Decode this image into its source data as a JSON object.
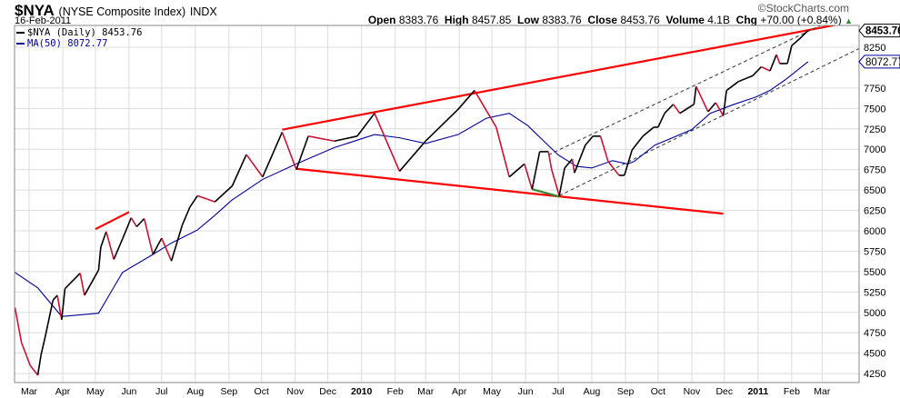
{
  "header": {
    "symbol": "$NYA",
    "name": "(NYSE Composite Index)",
    "exchange": "INDX",
    "date": "16-Feb-2011",
    "logo": "©StockCharts.com"
  },
  "quote": {
    "open_label": "Open",
    "open": "8383.76",
    "high_label": "High",
    "high": "8457.85",
    "low_label": "Low",
    "low": "8383.76",
    "close_label": "Close",
    "close": "8453.76",
    "volume_label": "Volume",
    "volume": "4.1B",
    "chg_label": "Chg",
    "chg": "+70.00 (+0.84%)",
    "chg_icon": "up-triangle-icon",
    "chg_color": "#2e8b2e"
  },
  "legend": [
    {
      "label": "$NYA (Daily) 8453.76",
      "color": "#000000"
    },
    {
      "label": "MA(50) 8072.77",
      "color": "#000099"
    }
  ],
  "chart_data": {
    "type": "line",
    "ylim": [
      4140,
      8517
    ],
    "y_ticks": [
      4250,
      4500,
      4750,
      5000,
      5250,
      5500,
      5750,
      6000,
      6250,
      6500,
      6750,
      7000,
      7250,
      7500,
      7750,
      8250
    ],
    "grid": true,
    "x_ticks": [
      {
        "date": "2009-03-01",
        "label": "Mar"
      },
      {
        "date": "2009-04-01",
        "label": "Apr"
      },
      {
        "date": "2009-05-01",
        "label": "May"
      },
      {
        "date": "2009-06-01",
        "label": "Jun"
      },
      {
        "date": "2009-07-01",
        "label": "Jul"
      },
      {
        "date": "2009-08-01",
        "label": "Aug"
      },
      {
        "date": "2009-09-01",
        "label": "Sep"
      },
      {
        "date": "2009-10-01",
        "label": "Oct"
      },
      {
        "date": "2009-11-01",
        "label": "Nov"
      },
      {
        "date": "2009-12-01",
        "label": "Dec"
      },
      {
        "date": "2010-01-01",
        "label": "2010",
        "bold": true
      },
      {
        "date": "2010-02-01",
        "label": "Feb"
      },
      {
        "date": "2010-03-01",
        "label": "Mar"
      },
      {
        "date": "2010-04-01",
        "label": "Apr"
      },
      {
        "date": "2010-05-01",
        "label": "May"
      },
      {
        "date": "2010-06-01",
        "label": "Jun"
      },
      {
        "date": "2010-07-01",
        "label": "Jul"
      },
      {
        "date": "2010-08-01",
        "label": "Aug"
      },
      {
        "date": "2010-09-01",
        "label": "Sep"
      },
      {
        "date": "2010-10-01",
        "label": "Oct"
      },
      {
        "date": "2010-11-01",
        "label": "Nov"
      },
      {
        "date": "2010-12-01",
        "label": "Dec"
      },
      {
        "date": "2011-01-01",
        "label": "2011",
        "bold": true
      },
      {
        "date": "2011-02-01",
        "label": "Feb"
      },
      {
        "date": "2011-03-01",
        "label": "Mar"
      }
    ],
    "last_price_label": "8453.76",
    "last_ma_label": "8072.77",
    "series": [
      {
        "name": "$NYA (Daily)",
        "color": "#000000",
        "down_color": "#cc1133",
        "points": [
          [
            "2009-02-16",
            5060
          ],
          [
            "2009-02-22",
            4630
          ],
          [
            "2009-03-02",
            4350
          ],
          [
            "2009-03-09",
            4230
          ],
          [
            "2009-03-12",
            4480
          ],
          [
            "2009-03-16",
            4710
          ],
          [
            "2009-03-23",
            5150
          ],
          [
            "2009-03-27",
            5210
          ],
          [
            "2009-03-31",
            4910
          ],
          [
            "2009-04-03",
            5290
          ],
          [
            "2009-04-17",
            5480
          ],
          [
            "2009-04-21",
            5210
          ],
          [
            "2009-05-04",
            5520
          ],
          [
            "2009-05-06",
            5800
          ],
          [
            "2009-05-11",
            5990
          ],
          [
            "2009-05-18",
            5650
          ],
          [
            "2009-05-26",
            5900
          ],
          [
            "2009-06-03",
            6160
          ],
          [
            "2009-06-08",
            6050
          ],
          [
            "2009-06-15",
            6150
          ],
          [
            "2009-06-23",
            5710
          ],
          [
            "2009-07-01",
            5910
          ],
          [
            "2009-07-10",
            5630
          ],
          [
            "2009-07-20",
            6070
          ],
          [
            "2009-07-27",
            6290
          ],
          [
            "2009-08-03",
            6430
          ],
          [
            "2009-08-19",
            6355
          ],
          [
            "2009-09-04",
            6550
          ],
          [
            "2009-09-17",
            6935
          ],
          [
            "2009-10-02",
            6660
          ],
          [
            "2009-10-20",
            7210
          ],
          [
            "2009-11-02",
            6750
          ],
          [
            "2009-11-13",
            7160
          ],
          [
            "2009-12-07",
            7100
          ],
          [
            "2009-12-28",
            7160
          ],
          [
            "2010-01-13",
            7440
          ],
          [
            "2010-02-05",
            6730
          ],
          [
            "2010-03-01",
            7100
          ],
          [
            "2010-03-31",
            7490
          ],
          [
            "2010-04-15",
            7720
          ],
          [
            "2010-05-05",
            7270
          ],
          [
            "2010-05-17",
            6660
          ],
          [
            "2010-05-31",
            6820
          ],
          [
            "2010-06-07",
            6510
          ],
          [
            "2010-06-14",
            6970
          ],
          [
            "2010-06-22",
            6970
          ],
          [
            "2010-06-25",
            6750
          ],
          [
            "2010-07-02",
            6430
          ],
          [
            "2010-07-07",
            6770
          ],
          [
            "2010-07-14",
            6880
          ],
          [
            "2010-07-16",
            6710
          ],
          [
            "2010-07-26",
            7050
          ],
          [
            "2010-08-02",
            7160
          ],
          [
            "2010-08-09",
            7160
          ],
          [
            "2010-08-16",
            6850
          ],
          [
            "2010-08-26",
            6680
          ],
          [
            "2010-08-31",
            6680
          ],
          [
            "2010-09-07",
            6990
          ],
          [
            "2010-09-17",
            7160
          ],
          [
            "2010-09-27",
            7270
          ],
          [
            "2010-10-01",
            7270
          ],
          [
            "2010-10-07",
            7440
          ],
          [
            "2010-10-15",
            7550
          ],
          [
            "2010-10-21",
            7440
          ],
          [
            "2010-11-03",
            7550
          ],
          [
            "2010-11-05",
            7770
          ],
          [
            "2010-11-16",
            7460
          ],
          [
            "2010-11-23",
            7570
          ],
          [
            "2010-11-30",
            7410
          ],
          [
            "2010-12-03",
            7720
          ],
          [
            "2010-12-14",
            7830
          ],
          [
            "2010-12-27",
            7900
          ],
          [
            "2011-01-04",
            8010
          ],
          [
            "2011-01-12",
            7960
          ],
          [
            "2011-01-18",
            8160
          ],
          [
            "2011-01-21",
            8050
          ],
          [
            "2011-01-28",
            8050
          ],
          [
            "2011-02-01",
            8270
          ],
          [
            "2011-02-08",
            8350
          ],
          [
            "2011-02-16",
            8453.76
          ]
        ]
      },
      {
        "name": "MA(50)",
        "color": "#000099",
        "points": [
          [
            "2009-02-16",
            5490
          ],
          [
            "2009-03-09",
            5300
          ],
          [
            "2009-03-31",
            4950
          ],
          [
            "2009-05-04",
            4990
          ],
          [
            "2009-05-26",
            5490
          ],
          [
            "2009-06-23",
            5710
          ],
          [
            "2009-07-10",
            5850
          ],
          [
            "2009-08-03",
            6010
          ],
          [
            "2009-08-19",
            6190
          ],
          [
            "2009-09-04",
            6380
          ],
          [
            "2009-10-02",
            6630
          ],
          [
            "2009-11-02",
            6820
          ],
          [
            "2009-12-07",
            7020
          ],
          [
            "2010-01-13",
            7180
          ],
          [
            "2010-02-05",
            7140
          ],
          [
            "2010-03-01",
            7070
          ],
          [
            "2010-03-31",
            7180
          ],
          [
            "2010-04-26",
            7380
          ],
          [
            "2010-05-17",
            7440
          ],
          [
            "2010-06-03",
            7290
          ],
          [
            "2010-07-01",
            6930
          ],
          [
            "2010-07-18",
            6790
          ],
          [
            "2010-08-01",
            6770
          ],
          [
            "2010-08-20",
            6860
          ],
          [
            "2010-09-03",
            6820
          ],
          [
            "2010-09-09",
            6850
          ],
          [
            "2010-09-28",
            7050
          ],
          [
            "2010-11-01",
            7240
          ],
          [
            "2010-11-18",
            7440
          ],
          [
            "2010-12-10",
            7550
          ],
          [
            "2010-12-30",
            7640
          ],
          [
            "2011-01-12",
            7720
          ],
          [
            "2011-01-26",
            7850
          ],
          [
            "2011-02-16",
            8072.77
          ]
        ]
      }
    ],
    "annotations": [
      {
        "type": "trendline",
        "color": "#ff0000",
        "style": "solid",
        "from": [
          "2009-10-20",
          7240
        ],
        "to": [
          "2011-04-05",
          8580
        ]
      },
      {
        "type": "trendline",
        "color": "#ff0000",
        "style": "solid",
        "from": [
          "2009-11-02",
          6760
        ],
        "to": [
          "2010-11-30",
          6210
        ]
      },
      {
        "type": "trendline",
        "color": "#ff0000",
        "style": "solid",
        "from": [
          "2009-05-01",
          6020
        ],
        "to": [
          "2009-06-01",
          6230
        ]
      },
      {
        "type": "trendline",
        "color": "#2e8b2e",
        "style": "solid",
        "from": [
          "2010-06-07",
          6510
        ],
        "to": [
          "2010-07-02",
          6420
        ]
      },
      {
        "type": "trendline",
        "color": "#333333",
        "style": "dashed",
        "from": [
          "2010-06-22",
          6930
        ],
        "to": [
          "2011-02-28",
          8520
        ]
      },
      {
        "type": "trendline",
        "color": "#333333",
        "style": "dashed",
        "from": [
          "2010-07-02",
          6430
        ],
        "to": [
          "2011-04-05",
          8240
        ]
      }
    ]
  }
}
